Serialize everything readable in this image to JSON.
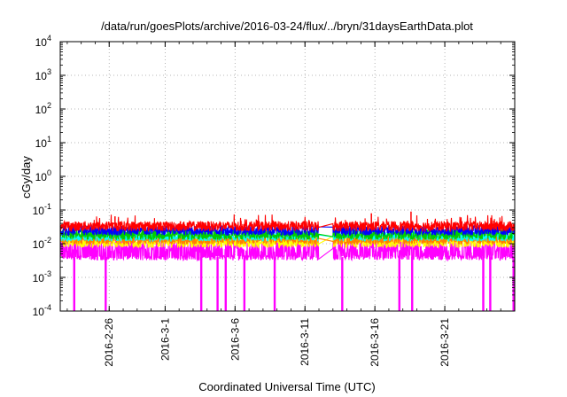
{
  "chart_data": {
    "type": "line",
    "title": "/data/run/goesPlots/archive/2016-03-24/flux/../bryn/31daysEarthData.plot",
    "xlabel": "Coordinated Universal Time (UTC)",
    "ylabel": "cGy/day",
    "y_scale": "log",
    "ylim": [
      0.0001,
      10000
    ],
    "xlim": [
      "2016-02-22T12:00",
      "2016-03-26T00:00"
    ],
    "x_ticks": [
      {
        "date": "2016-02-26",
        "label": "2016-2-26"
      },
      {
        "date": "2016-03-01",
        "label": "2016-3-1"
      },
      {
        "date": "2016-03-06",
        "label": "2016-3-6"
      },
      {
        "date": "2016-03-11",
        "label": "2016-3-11"
      },
      {
        "date": "2016-03-16",
        "label": "2016-3-16"
      },
      {
        "date": "2016-03-21",
        "label": "2016-3-21"
      }
    ],
    "y_ticks": [
      {
        "value": 0.0001,
        "base": "10",
        "exp": "-4"
      },
      {
        "value": 0.001,
        "base": "10",
        "exp": "-3"
      },
      {
        "value": 0.01,
        "base": "10",
        "exp": "-2"
      },
      {
        "value": 0.1,
        "base": "10",
        "exp": "-1"
      },
      {
        "value": 1,
        "base": "10",
        "exp": "0"
      },
      {
        "value": 10,
        "base": "10",
        "exp": "1"
      },
      {
        "value": 100,
        "base": "10",
        "exp": "2"
      },
      {
        "value": 1000,
        "base": "10",
        "exp": "3"
      },
      {
        "value": 10000,
        "base": "10",
        "exp": "4"
      }
    ],
    "grid": true,
    "legend": "none",
    "data_gap": {
      "start": "2016-03-12T00:00",
      "end": "2016-03-13T00:00"
    },
    "series": [
      {
        "color": "#ff00ff",
        "base": 0.0085,
        "spread": 0.45,
        "low_floor": 0.0032
      },
      {
        "color": "#ffff00",
        "base": 0.011,
        "spread": 0.35,
        "low_floor": 0.005
      },
      {
        "color": "#ff7f00",
        "base": 0.013,
        "spread": 0.3,
        "low_floor": 0.006
      },
      {
        "color": "#00ffff",
        "base": 0.016,
        "spread": 0.3,
        "low_floor": 0.007
      },
      {
        "color": "#00cc00",
        "base": 0.018,
        "spread": 0.3,
        "low_floor": 0.008
      },
      {
        "color": "#0000ff",
        "base": 0.024,
        "spread": 0.3,
        "low_floor": 0.01
      },
      {
        "color": "#ff0000",
        "base": 0.032,
        "spread": 0.3,
        "low_floor": 0.012
      }
    ],
    "spikes": [
      {
        "date": "2016-03-15T18:00",
        "value": 0.08
      },
      {
        "date": "2016-03-18T14:00",
        "value": 0.09
      },
      {
        "date": "2016-02-26T10:00",
        "value": 0.065
      }
    ],
    "dropouts": [
      "2016-02-23T12:00",
      "2016-02-25T18:00",
      "2016-03-03T14:00",
      "2016-03-04T18:00",
      "2016-03-05T08:00",
      "2016-03-06T16:00",
      "2016-03-08T20:00",
      "2016-03-13T16:00",
      "2016-03-17T18:00",
      "2016-03-18T16:00",
      "2016-03-23T18:00",
      "2016-03-24T06:00",
      "2016-03-25T22:00"
    ]
  }
}
